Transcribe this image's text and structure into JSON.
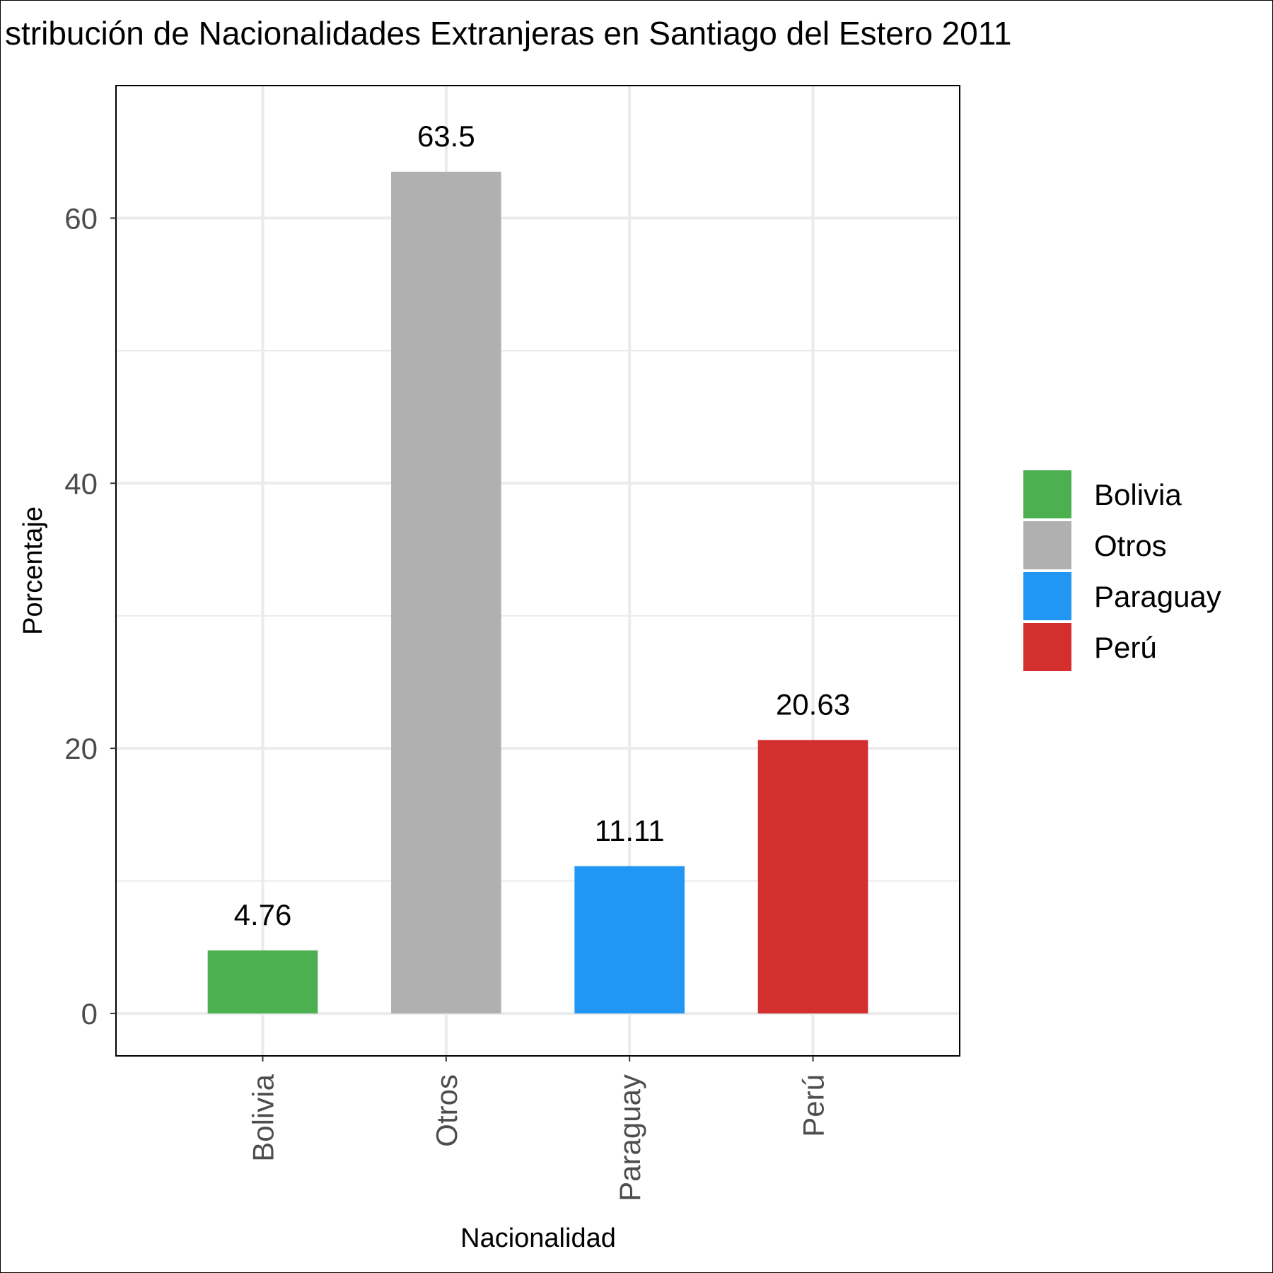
{
  "chart_data": {
    "type": "bar",
    "title": "stribución de Nacionalidades Extranjeras en Santiago del Estero 2011",
    "xlabel": "Nacionalidad",
    "ylabel": "Porcentaje",
    "categories": [
      "Bolivia",
      "Otros",
      "Paraguay",
      "Perú"
    ],
    "values": [
      4.76,
      63.5,
      11.11,
      20.63
    ],
    "value_labels": [
      "4.76",
      "63.5",
      "11.11",
      "20.63"
    ],
    "colors": [
      "#4caf50",
      "#b0b0b0",
      "#2196f3",
      "#d32f2f"
    ],
    "ylim": [
      -3.2,
      70
    ],
    "yticks": [
      0,
      20,
      40,
      60
    ],
    "ytick_labels": [
      "0",
      "20",
      "40",
      "60"
    ],
    "grid": true,
    "legend": {
      "position": "right",
      "entries": [
        "Bolivia",
        "Otros",
        "Paraguay",
        "Perú"
      ]
    }
  }
}
